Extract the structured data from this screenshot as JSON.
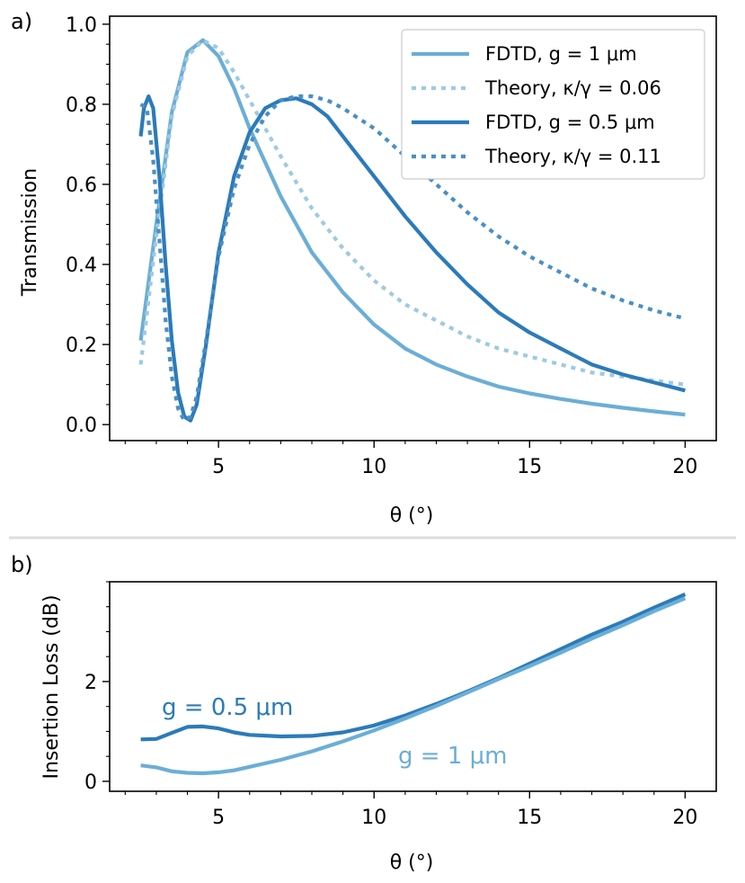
{
  "chart_data": [
    {
      "type": "line",
      "panel_label": "a)",
      "xlabel": "θ (°)",
      "ylabel": "Transmission",
      "xlim": [
        1.5,
        21.0
      ],
      "ylim": [
        -0.04,
        1.02
      ],
      "xticks": [
        5,
        10,
        15,
        20
      ],
      "xtick_labels": [
        "5",
        "10",
        "15",
        "20"
      ],
      "yticks": [
        0.0,
        0.2,
        0.4,
        0.6,
        0.8,
        1.0
      ],
      "ytick_labels": [
        "0.0",
        "0.2",
        "0.4",
        "0.6",
        "0.8",
        "1.0"
      ],
      "legend_position": "top-right",
      "series": [
        {
          "name": "FDTD, g = 1 μm",
          "color": "#6baed6",
          "style": "solid",
          "x": [
            2.5,
            3.0,
            3.5,
            4.0,
            4.5,
            5.0,
            5.5,
            6.0,
            7.0,
            8.0,
            9.0,
            10.0,
            11.0,
            12.0,
            13.0,
            14.0,
            15.0,
            16.0,
            17.0,
            18.0,
            19.0,
            20.0
          ],
          "y": [
            0.21,
            0.5,
            0.78,
            0.93,
            0.96,
            0.92,
            0.84,
            0.74,
            0.57,
            0.43,
            0.33,
            0.25,
            0.19,
            0.15,
            0.12,
            0.095,
            0.078,
            0.064,
            0.052,
            0.042,
            0.033,
            0.025
          ]
        },
        {
          "name": "Theory, κ/γ = 0.06",
          "color": "#9ecae1",
          "style": "dotted",
          "x": [
            2.5,
            3.0,
            3.5,
            4.0,
            4.5,
            5.0,
            5.5,
            6.0,
            7.0,
            8.0,
            9.0,
            10.0,
            11.0,
            12.0,
            13.0,
            14.0,
            15.0,
            16.0,
            17.0,
            18.0,
            19.0,
            20.0
          ],
          "y": [
            0.15,
            0.47,
            0.77,
            0.92,
            0.96,
            0.94,
            0.88,
            0.81,
            0.67,
            0.54,
            0.44,
            0.36,
            0.3,
            0.26,
            0.22,
            0.19,
            0.17,
            0.15,
            0.13,
            0.12,
            0.11,
            0.1
          ]
        },
        {
          "name": "FDTD, g = 0.5 μm",
          "color": "#2b7bba",
          "style": "solid",
          "x": [
            2.5,
            2.6,
            2.75,
            2.9,
            3.1,
            3.3,
            3.5,
            3.7,
            3.9,
            4.1,
            4.3,
            4.6,
            5.0,
            5.5,
            6.0,
            6.5,
            7.0,
            7.5,
            8.0,
            8.5,
            9.0,
            10.0,
            11.0,
            12.0,
            13.0,
            14.0,
            15.0,
            16.0,
            17.0,
            18.0,
            19.0,
            20.0
          ],
          "y": [
            0.72,
            0.79,
            0.82,
            0.79,
            0.62,
            0.4,
            0.21,
            0.08,
            0.02,
            0.01,
            0.05,
            0.2,
            0.43,
            0.62,
            0.73,
            0.79,
            0.81,
            0.815,
            0.8,
            0.77,
            0.72,
            0.62,
            0.52,
            0.43,
            0.35,
            0.28,
            0.23,
            0.19,
            0.15,
            0.125,
            0.105,
            0.085
          ]
        },
        {
          "name": "Theory, κ/γ = 0.11",
          "color": "#4a8fc4",
          "style": "dotted",
          "x": [
            2.5,
            2.7,
            2.9,
            3.1,
            3.3,
            3.5,
            3.7,
            3.9,
            4.1,
            4.3,
            4.6,
            5.0,
            5.5,
            6.0,
            6.5,
            7.0,
            7.5,
            8.0,
            8.5,
            9.0,
            10.0,
            11.0,
            12.0,
            13.0,
            14.0,
            15.0,
            16.0,
            17.0,
            18.0,
            19.0,
            20.0
          ],
          "y": [
            0.8,
            0.79,
            0.66,
            0.46,
            0.26,
            0.12,
            0.04,
            0.01,
            0.02,
            0.07,
            0.21,
            0.42,
            0.59,
            0.7,
            0.77,
            0.81,
            0.82,
            0.82,
            0.81,
            0.79,
            0.74,
            0.67,
            0.6,
            0.53,
            0.47,
            0.42,
            0.38,
            0.34,
            0.31,
            0.285,
            0.265
          ]
        }
      ]
    },
    {
      "type": "line",
      "panel_label": "b)",
      "xlabel": "θ (°)",
      "ylabel": "Insertion Loss (dB)",
      "xlim": [
        1.5,
        21.0
      ],
      "ylim": [
        -0.2,
        4.0
      ],
      "xticks": [
        5,
        10,
        15,
        20
      ],
      "xtick_labels": [
        "5",
        "10",
        "15",
        "20"
      ],
      "yticks": [
        0,
        2
      ],
      "ytick_labels": [
        "0",
        "2"
      ],
      "annotations": [
        "g = 0.5 μm",
        "g = 1 μm"
      ],
      "series": [
        {
          "name": "g = 0.5 μm",
          "color": "#2b7bba",
          "style": "solid",
          "x": [
            2.5,
            3.0,
            3.5,
            4.0,
            4.5,
            5.0,
            5.5,
            6.0,
            7.0,
            8.0,
            9.0,
            10.0,
            11.0,
            12.0,
            13.0,
            14.0,
            15.0,
            16.0,
            17.0,
            18.0,
            19.0,
            20.0
          ],
          "y": [
            0.84,
            0.85,
            0.97,
            1.09,
            1.1,
            1.06,
            0.98,
            0.93,
            0.9,
            0.91,
            0.98,
            1.12,
            1.32,
            1.55,
            1.8,
            2.07,
            2.36,
            2.65,
            2.94,
            3.2,
            3.48,
            3.75
          ]
        },
        {
          "name": "g = 1 μm",
          "color": "#6baed6",
          "style": "solid",
          "x": [
            2.5,
            3.0,
            3.5,
            4.0,
            4.5,
            5.0,
            5.5,
            6.0,
            7.0,
            8.0,
            9.0,
            10.0,
            11.0,
            12.0,
            13.0,
            14.0,
            15.0,
            16.0,
            17.0,
            18.0,
            19.0,
            20.0
          ],
          "y": [
            0.32,
            0.28,
            0.2,
            0.17,
            0.16,
            0.18,
            0.22,
            0.29,
            0.43,
            0.6,
            0.8,
            1.02,
            1.26,
            1.51,
            1.78,
            2.05,
            2.31,
            2.58,
            2.86,
            3.13,
            3.41,
            3.67
          ]
        }
      ]
    }
  ]
}
